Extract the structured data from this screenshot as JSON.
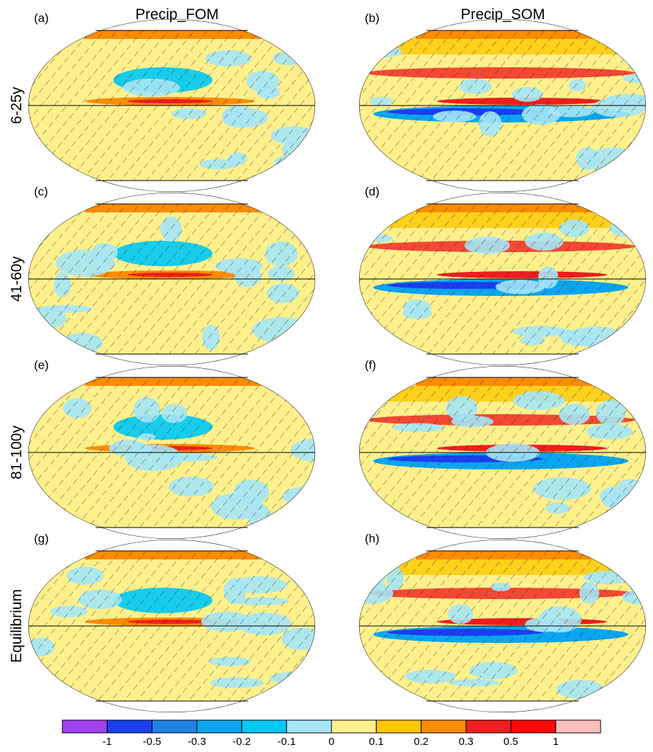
{
  "columns": [
    "Precip_FOM",
    "Precip_SOM"
  ],
  "rows": [
    "6-25y",
    "41-60y",
    "81-100y",
    "Equilibrium"
  ],
  "panels": [
    "(a)",
    "(b)",
    "(c)",
    "(d)",
    "(e)",
    "(f)",
    "(g)",
    "(h)"
  ],
  "colorbar": {
    "colors": [
      "#a040f0",
      "#1a3ef0",
      "#1e82e6",
      "#0aa5f0",
      "#00c8f5",
      "#a5e6f5",
      "#fff08c",
      "#ffc800",
      "#ff8c00",
      "#f01e1e",
      "#ff0a0a",
      "#ffbebe"
    ],
    "ticks": [
      -1,
      -0.5,
      -0.3,
      -0.2,
      -0.1,
      0,
      0.1,
      0.2,
      0.3,
      0.5,
      1
    ]
  }
}
